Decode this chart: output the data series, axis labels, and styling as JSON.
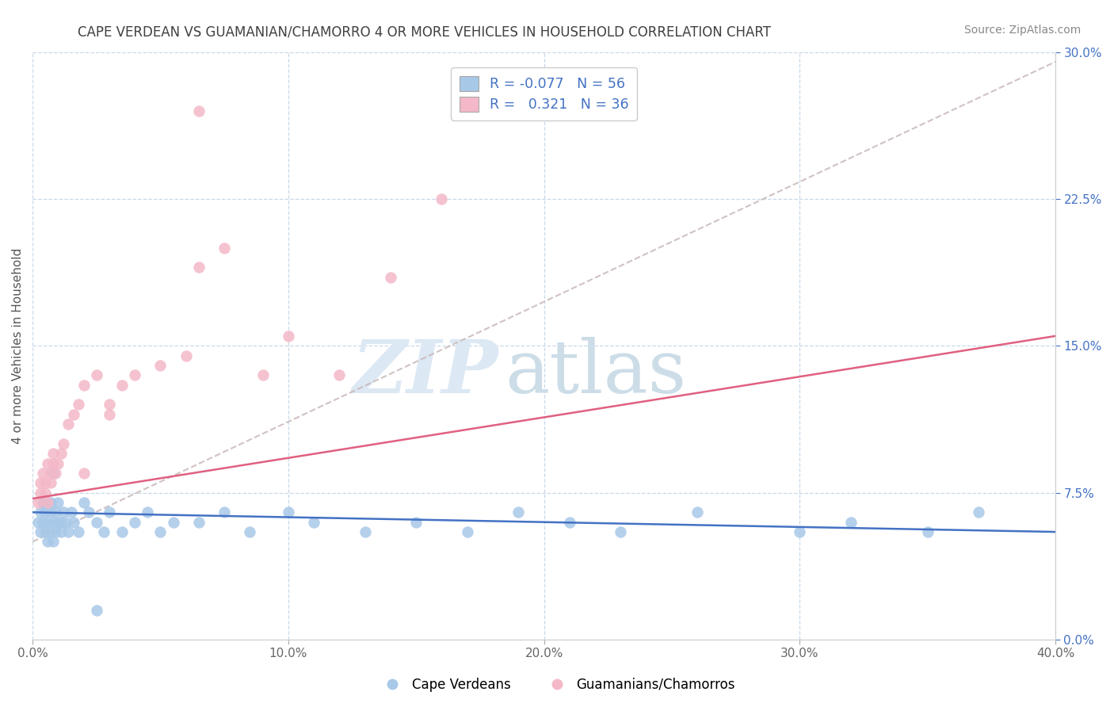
{
  "title": "CAPE VERDEAN VS GUAMANIAN/CHAMORRO 4 OR MORE VEHICLES IN HOUSEHOLD CORRELATION CHART",
  "source": "Source: ZipAtlas.com",
  "ylabel": "4 or more Vehicles in Household",
  "xlim": [
    0.0,
    0.4
  ],
  "ylim": [
    0.0,
    0.3
  ],
  "xticks": [
    0.0,
    0.1,
    0.2,
    0.3,
    0.4
  ],
  "xticklabels": [
    "0.0%",
    "10.0%",
    "20.0%",
    "30.0%",
    "40.0%"
  ],
  "yticks": [
    0.0,
    0.075,
    0.15,
    0.225,
    0.3
  ],
  "yticklabels": [
    "0.0%",
    "7.5%",
    "15.0%",
    "22.5%",
    "30.0%"
  ],
  "r1": "-0.077",
  "n1": "56",
  "r2": "0.321",
  "n2": "36",
  "blue_fill": "#a8c8e8",
  "blue_line": "#4472c4",
  "pink_fill": "#f4b8c8",
  "pink_line": "#e06080",
  "gray_line": "#c8b8b8",
  "bg": "#ffffff",
  "grid_color": "#c8d8e8",
  "tick_color": "#4472c4",
  "legend_text_color": "#4472c4",
  "title_color": "#404040",
  "source_color": "#888888",
  "watermark_zip_color": "#dce8f4",
  "watermark_atlas_color": "#ccdde8",
  "blue_x": [
    0.002,
    0.003,
    0.003,
    0.004,
    0.004,
    0.005,
    0.005,
    0.005,
    0.006,
    0.006,
    0.006,
    0.007,
    0.007,
    0.007,
    0.008,
    0.008,
    0.009,
    0.009,
    0.01,
    0.01,
    0.011,
    0.011,
    0.012,
    0.013,
    0.014,
    0.015,
    0.016,
    0.018,
    0.02,
    0.022,
    0.025,
    0.028,
    0.03,
    0.035,
    0.04,
    0.045,
    0.05,
    0.055,
    0.065,
    0.075,
    0.085,
    0.1,
    0.11,
    0.13,
    0.15,
    0.17,
    0.19,
    0.21,
    0.23,
    0.26,
    0.3,
    0.32,
    0.35,
    0.37,
    0.025,
    0.008
  ],
  "blue_y": [
    0.06,
    0.055,
    0.065,
    0.06,
    0.07,
    0.055,
    0.065,
    0.07,
    0.06,
    0.07,
    0.05,
    0.065,
    0.055,
    0.07,
    0.06,
    0.05,
    0.065,
    0.055,
    0.06,
    0.07,
    0.06,
    0.055,
    0.065,
    0.06,
    0.055,
    0.065,
    0.06,
    0.055,
    0.07,
    0.065,
    0.06,
    0.055,
    0.065,
    0.055,
    0.06,
    0.065,
    0.055,
    0.06,
    0.06,
    0.065,
    0.055,
    0.065,
    0.06,
    0.055,
    0.06,
    0.055,
    0.065,
    0.06,
    0.055,
    0.065,
    0.055,
    0.06,
    0.055,
    0.065,
    0.015,
    0.085
  ],
  "pink_x": [
    0.002,
    0.003,
    0.003,
    0.004,
    0.005,
    0.005,
    0.006,
    0.006,
    0.007,
    0.007,
    0.008,
    0.008,
    0.009,
    0.01,
    0.011,
    0.012,
    0.014,
    0.016,
    0.018,
    0.02,
    0.025,
    0.03,
    0.035,
    0.04,
    0.05,
    0.06,
    0.065,
    0.075,
    0.09,
    0.1,
    0.12,
    0.14,
    0.16,
    0.065,
    0.03,
    0.02
  ],
  "pink_y": [
    0.07,
    0.075,
    0.08,
    0.085,
    0.075,
    0.08,
    0.09,
    0.07,
    0.08,
    0.085,
    0.09,
    0.095,
    0.085,
    0.09,
    0.095,
    0.1,
    0.11,
    0.115,
    0.12,
    0.13,
    0.135,
    0.115,
    0.13,
    0.135,
    0.14,
    0.145,
    0.19,
    0.2,
    0.135,
    0.155,
    0.135,
    0.185,
    0.225,
    0.27,
    0.12,
    0.085
  ]
}
